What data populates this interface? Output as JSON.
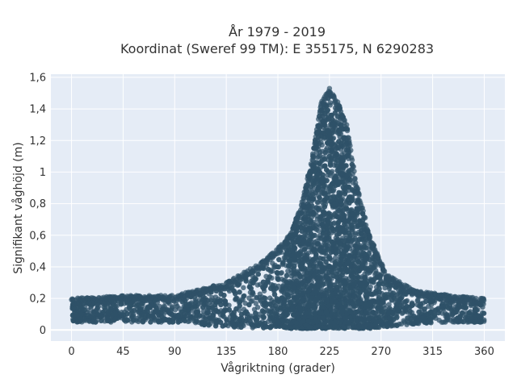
{
  "chart_data": {
    "type": "scatter",
    "title_lines": [
      "År 1979 - 2019",
      "Koordinat (Sweref 99 TM): E 355175, N 6290283"
    ],
    "xlabel": "Vågriktning (grader)",
    "ylabel": "Signifikant våghöjd (m)",
    "xlim": [
      -18,
      378
    ],
    "ylim": [
      -0.07,
      1.62
    ],
    "x_ticks": [
      0,
      45,
      90,
      135,
      180,
      225,
      270,
      315,
      360
    ],
    "x_tick_labels": [
      "0",
      "45",
      "90",
      "135",
      "180",
      "225",
      "270",
      "315",
      "360"
    ],
    "y_ticks": [
      0,
      0.2,
      0.4,
      0.6,
      0.8,
      1,
      1.2,
      1.4,
      1.6
    ],
    "y_tick_labels": [
      "0",
      "0,2",
      "0,4",
      "0,6",
      "0,8",
      "1",
      "1,2",
      "1,4",
      "1,6"
    ],
    "grid": true,
    "plot_background": "#e5ecf6",
    "marker_color": "#2f5168",
    "envelope": {
      "description_points": [
        {
          "x": 0,
          "y_max": 0.2,
          "y_min": 0.05
        },
        {
          "x": 45,
          "y_max": 0.22,
          "y_min": 0.05
        },
        {
          "x": 90,
          "y_max": 0.22,
          "y_min": 0.05
        },
        {
          "x": 135,
          "y_max": 0.3,
          "y_min": 0.02
        },
        {
          "x": 170,
          "y_max": 0.45,
          "y_min": 0.01
        },
        {
          "x": 190,
          "y_max": 0.6,
          "y_min": 0.01
        },
        {
          "x": 200,
          "y_max": 0.78,
          "y_min": 0.01
        },
        {
          "x": 210,
          "y_max": 1.1,
          "y_min": 0.01
        },
        {
          "x": 218,
          "y_max": 1.45,
          "y_min": 0.01
        },
        {
          "x": 225,
          "y_max": 1.53,
          "y_min": 0.01
        },
        {
          "x": 232,
          "y_max": 1.45,
          "y_min": 0.01
        },
        {
          "x": 240,
          "y_max": 1.3,
          "y_min": 0.01
        },
        {
          "x": 248,
          "y_max": 0.95,
          "y_min": 0.01
        },
        {
          "x": 260,
          "y_max": 0.6,
          "y_min": 0.01
        },
        {
          "x": 275,
          "y_max": 0.35,
          "y_min": 0.02
        },
        {
          "x": 300,
          "y_max": 0.25,
          "y_min": 0.04
        },
        {
          "x": 330,
          "y_max": 0.22,
          "y_min": 0.05
        },
        {
          "x": 360,
          "y_max": 0.2,
          "y_min": 0.05
        }
      ]
    }
  }
}
